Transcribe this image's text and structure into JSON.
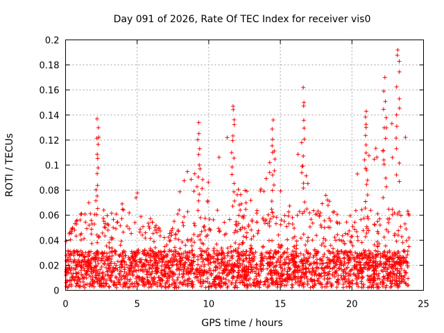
{
  "chart_data": {
    "type": "scatter",
    "title": "Day 091 of 2026, Rate Of TEC Index for receiver vis0",
    "xlabel": "GPS time / hours",
    "ylabel": "ROTI / TECUs",
    "xlim": [
      0,
      25
    ],
    "ylim": [
      0,
      0.2
    ],
    "x_ticks": [
      "0",
      "5",
      "10",
      "15",
      "20",
      "25"
    ],
    "y_ticks": [
      "0",
      "0.02",
      "0.04",
      "0.06",
      "0.08",
      "0.1",
      "0.12",
      "0.14",
      "0.16",
      "0.18",
      "0.2"
    ],
    "grid": true,
    "marker": "+",
    "color": "#ff0000",
    "notable_peaks": [
      {
        "x": 2.2,
        "y": 0.137
      },
      {
        "x": 9.3,
        "y": 0.134
      },
      {
        "x": 11.7,
        "y": 0.147
      },
      {
        "x": 14.5,
        "y": 0.136
      },
      {
        "x": 16.6,
        "y": 0.162
      },
      {
        "x": 21.0,
        "y": 0.143
      },
      {
        "x": 22.3,
        "y": 0.17
      },
      {
        "x": 23.2,
        "y": 0.192
      }
    ],
    "envelope": {
      "x": [
        0,
        0.5,
        1,
        1.5,
        2,
        2.2,
        2.6,
        3,
        3.5,
        4,
        4.5,
        5,
        5.5,
        6,
        6.5,
        7,
        7.5,
        8,
        8.5,
        9,
        9.3,
        9.8,
        10,
        10.5,
        11,
        11.7,
        12,
        12.5,
        13,
        13.5,
        14,
        14.5,
        15,
        15.5,
        16,
        16.6,
        17,
        17.5,
        18,
        18.5,
        19,
        19.5,
        20,
        20.5,
        21,
        21.5,
        22,
        22.3,
        22.7,
        23,
        23.2,
        23.6,
        24
      ],
      "y": [
        0.04,
        0.05,
        0.06,
        0.065,
        0.09,
        0.137,
        0.09,
        0.065,
        0.06,
        0.07,
        0.065,
        0.078,
        0.07,
        0.055,
        0.05,
        0.04,
        0.05,
        0.08,
        0.1,
        0.09,
        0.134,
        0.065,
        0.09,
        0.1,
        0.12,
        0.147,
        0.09,
        0.085,
        0.07,
        0.075,
        0.095,
        0.136,
        0.08,
        0.065,
        0.075,
        0.162,
        0.07,
        0.06,
        0.095,
        0.07,
        0.06,
        0.05,
        0.07,
        0.1,
        0.143,
        0.11,
        0.12,
        0.17,
        0.13,
        0.165,
        0.192,
        0.15,
        0.07
      ]
    },
    "baseline": 0.005,
    "typical_high": 0.035,
    "x_range_of_data": [
      0,
      24
    ]
  }
}
